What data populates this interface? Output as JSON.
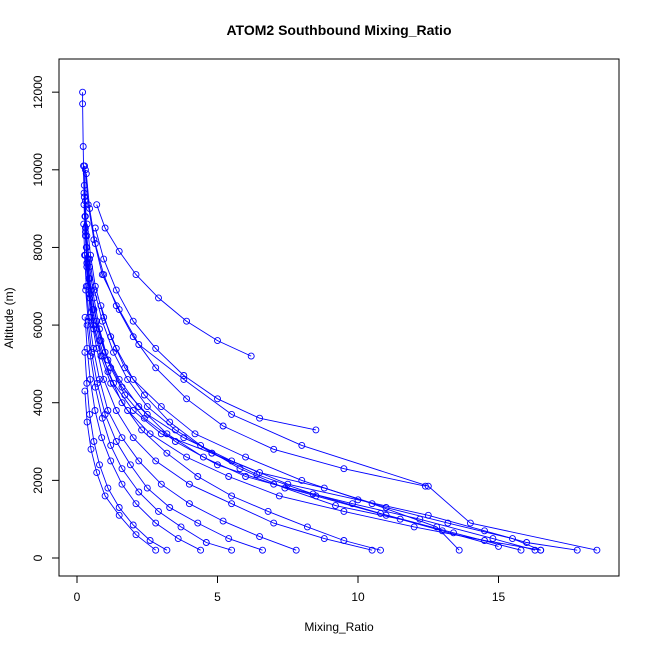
{
  "chart_data": {
    "type": "line",
    "title": "ATOM2 Southbound Mixing_Ratio",
    "xlabel": "Mixing_Ratio",
    "ylabel": "Altitude (m)",
    "xlim": [
      0,
      18.5
    ],
    "ylim": [
      0,
      12000
    ],
    "xticks": [
      "0",
      "5",
      "10",
      "15"
    ],
    "yticks": [
      "0",
      "2000",
      "4000",
      "6000",
      "8000",
      "10000",
      "12000"
    ],
    "grid": false,
    "legend": "none",
    "marker": "open-circle",
    "color": "#0000ff",
    "series": [
      {
        "points": [
          [
            16.5,
            200
          ],
          [
            15.5,
            500
          ],
          [
            13.2,
            900
          ],
          [
            11.0,
            1300
          ],
          [
            8.8,
            1800
          ],
          [
            6.5,
            2200
          ],
          [
            4.8,
            2700
          ],
          [
            3.0,
            3200
          ],
          [
            2.0,
            3800
          ],
          [
            1.3,
            4500
          ],
          [
            0.9,
            5200
          ],
          [
            0.6,
            6000
          ],
          [
            0.45,
            6800
          ],
          [
            0.35,
            7600
          ],
          [
            0.3,
            8400
          ],
          [
            0.25,
            9400
          ],
          [
            0.22,
            10600
          ],
          [
            0.2,
            11700
          ],
          [
            0.2,
            12000
          ]
        ]
      },
      {
        "points": [
          [
            17.8,
            200
          ],
          [
            16.0,
            400
          ],
          [
            14.5,
            700
          ],
          [
            12.5,
            1100
          ],
          [
            10.0,
            1500
          ],
          [
            7.5,
            1900
          ],
          [
            5.5,
            2500
          ],
          [
            3.8,
            3100
          ],
          [
            2.5,
            3700
          ],
          [
            1.6,
            4400
          ],
          [
            1.1,
            5100
          ],
          [
            0.8,
            5900
          ],
          [
            0.6,
            6700
          ],
          [
            0.45,
            7500
          ],
          [
            0.35,
            8300
          ],
          [
            0.3,
            9200
          ],
          [
            0.27,
            10100
          ]
        ]
      },
      {
        "points": [
          [
            16.3,
            200
          ],
          [
            14.8,
            500
          ],
          [
            12.2,
            1000
          ],
          [
            9.8,
            1400
          ],
          [
            7.0,
            1900
          ],
          [
            5.0,
            2400
          ],
          [
            3.5,
            3000
          ],
          [
            2.4,
            3600
          ],
          [
            1.7,
            4200
          ],
          [
            1.2,
            4900
          ],
          [
            0.85,
            5600
          ],
          [
            0.6,
            6400
          ],
          [
            0.45,
            7200
          ],
          [
            0.35,
            8000
          ],
          [
            0.3,
            8800
          ],
          [
            0.26,
            9600
          ]
        ]
      },
      {
        "points": [
          [
            18.5,
            200
          ],
          [
            14.0,
            900
          ],
          [
            12.5,
            1850
          ],
          [
            8.0,
            2900
          ],
          [
            5.5,
            3700
          ],
          [
            3.8,
            4600
          ],
          [
            2.2,
            5500
          ],
          [
            1.5,
            6400
          ],
          [
            0.9,
            7300
          ],
          [
            0.6,
            8200
          ],
          [
            0.4,
            9100
          ],
          [
            0.3,
            10000
          ]
        ]
      },
      {
        "points": [
          [
            15.0,
            300
          ],
          [
            13.0,
            700
          ],
          [
            11.0,
            1100
          ],
          [
            8.5,
            1600
          ],
          [
            6.0,
            2100
          ],
          [
            4.5,
            2600
          ],
          [
            3.2,
            3200
          ],
          [
            2.2,
            3900
          ],
          [
            1.5,
            4600
          ],
          [
            1.0,
            5300
          ],
          [
            0.7,
            6100
          ],
          [
            0.5,
            6900
          ],
          [
            0.38,
            7700
          ],
          [
            0.3,
            8500
          ],
          [
            0.26,
            9300
          ],
          [
            0.23,
            10100
          ]
        ]
      },
      {
        "points": [
          [
            16.5,
            200
          ],
          [
            14.5,
            450
          ],
          [
            12.0,
            800
          ],
          [
            9.5,
            1200
          ],
          [
            7.2,
            1600
          ],
          [
            5.4,
            2100
          ],
          [
            3.9,
            2600
          ],
          [
            2.6,
            3200
          ],
          [
            1.8,
            3800
          ],
          [
            1.2,
            4500
          ],
          [
            0.85,
            5200
          ],
          [
            0.6,
            5900
          ],
          [
            0.45,
            6700
          ],
          [
            0.35,
            7500
          ],
          [
            0.3,
            8300
          ],
          [
            0.25,
            9100
          ]
        ]
      },
      {
        "points": [
          [
            10.8,
            200
          ],
          [
            9.5,
            450
          ],
          [
            8.2,
            800
          ],
          [
            6.8,
            1200
          ],
          [
            5.5,
            1600
          ],
          [
            4.3,
            2100
          ],
          [
            3.2,
            2700
          ],
          [
            2.3,
            3300
          ],
          [
            1.6,
            4000
          ],
          [
            1.1,
            4800
          ],
          [
            0.8,
            5600
          ],
          [
            0.55,
            6400
          ],
          [
            0.42,
            7200
          ],
          [
            0.33,
            8000
          ],
          [
            0.28,
            8800
          ]
        ]
      },
      {
        "points": [
          [
            10.5,
            200
          ],
          [
            8.8,
            500
          ],
          [
            7.0,
            900
          ],
          [
            5.5,
            1400
          ],
          [
            4.0,
            1900
          ],
          [
            2.8,
            2500
          ],
          [
            2.0,
            3100
          ],
          [
            1.4,
            3800
          ],
          [
            0.95,
            4600
          ],
          [
            0.7,
            5400
          ],
          [
            0.5,
            6200
          ],
          [
            0.38,
            7000
          ],
          [
            0.3,
            7800
          ]
        ]
      },
      {
        "points": [
          [
            7.8,
            200
          ],
          [
            6.5,
            550
          ],
          [
            5.2,
            950
          ],
          [
            4.0,
            1400
          ],
          [
            3.0,
            1900
          ],
          [
            2.2,
            2500
          ],
          [
            1.6,
            3100
          ],
          [
            1.1,
            3800
          ],
          [
            0.8,
            4600
          ],
          [
            0.58,
            5400
          ],
          [
            0.43,
            6200
          ],
          [
            0.33,
            7000
          ],
          [
            0.27,
            7800
          ],
          [
            0.24,
            8600
          ]
        ]
      },
      {
        "points": [
          [
            6.6,
            200
          ],
          [
            5.4,
            500
          ],
          [
            4.3,
            900
          ],
          [
            3.3,
            1300
          ],
          [
            2.5,
            1800
          ],
          [
            1.9,
            2400
          ],
          [
            1.4,
            3000
          ],
          [
            1.0,
            3700
          ],
          [
            0.72,
            4500
          ],
          [
            0.52,
            5300
          ],
          [
            0.4,
            6100
          ],
          [
            0.31,
            6900
          ]
        ]
      },
      {
        "points": [
          [
            5.5,
            200
          ],
          [
            4.6,
            400
          ],
          [
            3.7,
            800
          ],
          [
            2.9,
            1200
          ],
          [
            2.2,
            1700
          ],
          [
            1.6,
            2300
          ],
          [
            1.2,
            2900
          ],
          [
            0.9,
            3600
          ],
          [
            0.65,
            4400
          ],
          [
            0.48,
            5200
          ],
          [
            0.36,
            6000
          ]
        ]
      },
      {
        "points": [
          [
            4.4,
            200
          ],
          [
            3.6,
            500
          ],
          [
            2.8,
            900
          ],
          [
            2.1,
            1400
          ],
          [
            1.6,
            1900
          ],
          [
            1.2,
            2500
          ],
          [
            0.88,
            3100
          ],
          [
            0.64,
            3800
          ],
          [
            0.47,
            4600
          ],
          [
            0.36,
            5400
          ],
          [
            0.29,
            6200
          ]
        ]
      },
      {
        "points": [
          [
            3.2,
            200
          ],
          [
            2.6,
            450
          ],
          [
            2.0,
            850
          ],
          [
            1.5,
            1300
          ],
          [
            1.1,
            1800
          ],
          [
            0.8,
            2400
          ],
          [
            0.6,
            3000
          ],
          [
            0.45,
            3700
          ],
          [
            0.35,
            4500
          ],
          [
            0.28,
            5300
          ]
        ]
      },
      {
        "points": [
          [
            2.8,
            200
          ],
          [
            2.1,
            600
          ],
          [
            1.5,
            1100
          ],
          [
            1.0,
            1600
          ],
          [
            0.7,
            2200
          ],
          [
            0.5,
            2800
          ],
          [
            0.36,
            3500
          ],
          [
            0.28,
            4300
          ]
        ]
      },
      {
        "points": [
          [
            13.6,
            200
          ],
          [
            12.8,
            800
          ],
          [
            10.5,
            1400
          ],
          [
            8.0,
            2000
          ],
          [
            6.0,
            2600
          ],
          [
            4.2,
            3200
          ],
          [
            3.0,
            3900
          ],
          [
            2.0,
            4600
          ],
          [
            1.4,
            5400
          ],
          [
            0.95,
            6200
          ],
          [
            0.65,
            7000
          ],
          [
            0.48,
            7800
          ],
          [
            0.36,
            8600
          ]
        ]
      },
      {
        "points": [
          [
            12.4,
            1850
          ],
          [
            9.5,
            2300
          ],
          [
            7.0,
            2800
          ],
          [
            5.2,
            3400
          ],
          [
            3.9,
            4100
          ],
          [
            2.8,
            4900
          ],
          [
            2.0,
            5700
          ],
          [
            1.4,
            6500
          ],
          [
            0.95,
            7300
          ],
          [
            0.65,
            8100
          ],
          [
            0.45,
            9000
          ],
          [
            0.33,
            9900
          ]
        ]
      },
      {
        "points": [
          [
            8.5,
            3300
          ],
          [
            6.5,
            3600
          ],
          [
            5.0,
            4100
          ],
          [
            3.8,
            4700
          ],
          [
            2.8,
            5400
          ],
          [
            2.0,
            6100
          ],
          [
            1.4,
            6900
          ],
          [
            0.95,
            7700
          ],
          [
            0.65,
            8500
          ]
        ]
      },
      {
        "points": [
          [
            6.2,
            5200
          ],
          [
            5.0,
            5600
          ],
          [
            3.9,
            6100
          ],
          [
            2.9,
            6700
          ],
          [
            2.1,
            7300
          ],
          [
            1.5,
            7900
          ],
          [
            1.0,
            8500
          ],
          [
            0.7,
            9100
          ]
        ]
      },
      {
        "points": [
          [
            11.5,
            1000
          ],
          [
            9.2,
            1350
          ],
          [
            7.4,
            1800
          ],
          [
            5.8,
            2300
          ],
          [
            4.4,
            2900
          ],
          [
            3.3,
            3500
          ],
          [
            2.4,
            4200
          ],
          [
            1.7,
            4900
          ],
          [
            1.2,
            5700
          ],
          [
            0.85,
            6500
          ]
        ]
      },
      {
        "points": [
          [
            15.8,
            200
          ],
          [
            13.4,
            650
          ],
          [
            10.8,
            1150
          ],
          [
            8.4,
            1650
          ],
          [
            6.4,
            2150
          ],
          [
            4.8,
            2700
          ],
          [
            3.5,
            3300
          ],
          [
            2.5,
            3900
          ],
          [
            1.8,
            4600
          ],
          [
            1.3,
            5300
          ],
          [
            0.9,
            6100
          ],
          [
            0.62,
            6900
          ],
          [
            0.45,
            7700
          ]
        ]
      }
    ]
  }
}
